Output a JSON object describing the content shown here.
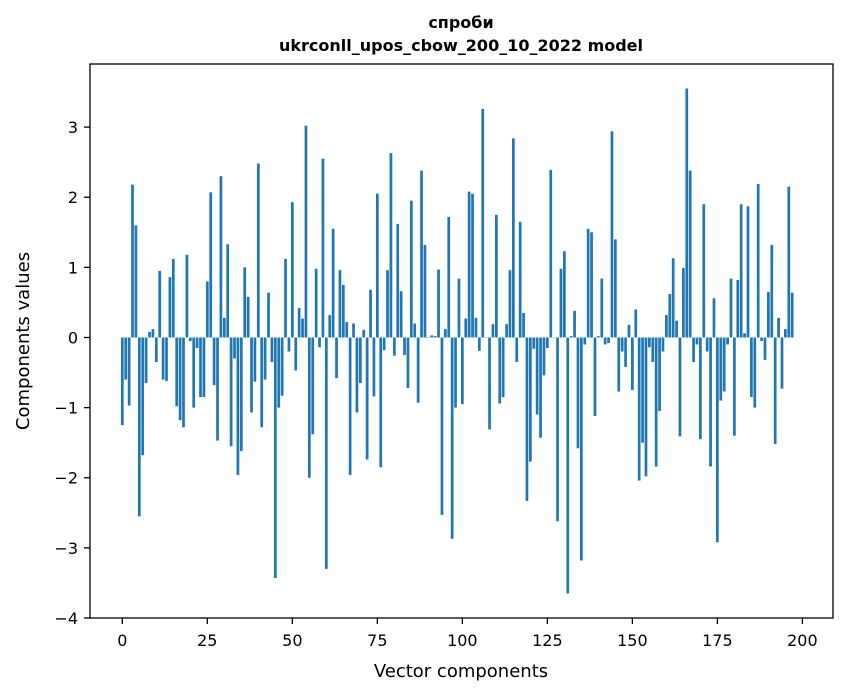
{
  "chart_data": {
    "type": "bar",
    "title": "спроби",
    "subtitle": "ukrconll_upos_cbow_200_10_2022 model",
    "xlabel": "Vector components",
    "ylabel": "Components values",
    "xlim": [
      -9.5,
      209
    ],
    "ylim": [
      -4,
      3.9
    ],
    "xticks": [
      0,
      25,
      50,
      75,
      100,
      125,
      150,
      175,
      200
    ],
    "yticks": [
      -4,
      -3,
      -2,
      -1,
      0,
      1,
      2,
      3
    ],
    "ytick_labels": [
      "−4",
      "−3",
      "−2",
      "−1",
      "0",
      "1",
      "2",
      "3"
    ],
    "grid": false,
    "legend": "none",
    "bar_color": "#1f77b4",
    "values": [
      -1.25,
      -0.6,
      -0.97,
      2.18,
      1.6,
      -2.55,
      -1.68,
      -0.65,
      0.08,
      0.12,
      -0.35,
      0.95,
      -0.6,
      -0.62,
      0.86,
      1.12,
      -0.98,
      -1.18,
      -1.28,
      1.18,
      -0.05,
      -1.0,
      -0.15,
      -0.85,
      -0.85,
      0.8,
      2.07,
      -0.68,
      -1.47,
      2.3,
      0.28,
      1.33,
      -1.55,
      -0.3,
      -1.96,
      -1.62,
      1.0,
      0.58,
      -1.07,
      -0.63,
      2.48,
      -1.28,
      -0.6,
      0.64,
      -0.35,
      -3.43,
      -1.0,
      -0.83,
      1.12,
      -0.2,
      1.93,
      -0.47,
      0.42,
      0.27,
      3.02,
      -2.0,
      -1.38,
      0.98,
      -0.14,
      2.55,
      -3.3,
      0.32,
      1.55,
      -0.58,
      0.96,
      0.75,
      0.22,
      -1.96,
      0.2,
      -1.07,
      -0.65,
      0.11,
      -1.74,
      0.68,
      -0.84,
      2.05,
      -1.85,
      -0.18,
      0.96,
      2.63,
      -0.26,
      1.62,
      0.66,
      -0.25,
      -0.72,
      1.95,
      0.2,
      -0.93,
      2.38,
      1.32,
      0.0,
      0.03,
      0.02,
      0.97,
      -2.53,
      0.12,
      1.72,
      -2.87,
      -1.0,
      0.84,
      -0.95,
      0.27,
      2.08,
      2.05,
      0.28,
      -0.19,
      3.26,
      0.0,
      -1.31,
      0.19,
      1.75,
      -0.94,
      -0.85,
      0.19,
      0.96,
      2.84,
      -0.35,
      1.65,
      0.35,
      -2.33,
      -1.77,
      -0.16,
      -1.1,
      -1.43,
      -0.54,
      -0.15,
      2.39,
      0.0,
      -2.62,
      0.98,
      1.23,
      -3.65,
      0.02,
      0.38,
      -1.58,
      -3.18,
      -0.1,
      1.55,
      1.5,
      -1.12,
      0.02,
      0.84,
      -0.1,
      -0.08,
      2.94,
      1.4,
      -0.77,
      -0.2,
      -0.42,
      0.18,
      -0.75,
      0.4,
      -2.04,
      -1.5,
      -1.98,
      -0.14,
      -0.35,
      -1.84,
      -1.05,
      -0.2,
      0.32,
      0.62,
      1.13,
      0.24,
      -1.41,
      0.99,
      3.55,
      2.38,
      -0.35,
      -0.1,
      -1.45,
      1.9,
      -0.2,
      -1.84,
      0.56,
      -2.92,
      -0.9,
      -0.77,
      -0.1,
      0.84,
      -1.4,
      0.82,
      1.9,
      0.06,
      1.87,
      -0.85,
      -1.0,
      2.19,
      -0.05,
      -0.32,
      0.65,
      1.32,
      -1.52,
      0.28,
      -0.73,
      0.12,
      2.15,
      0.64
    ]
  }
}
